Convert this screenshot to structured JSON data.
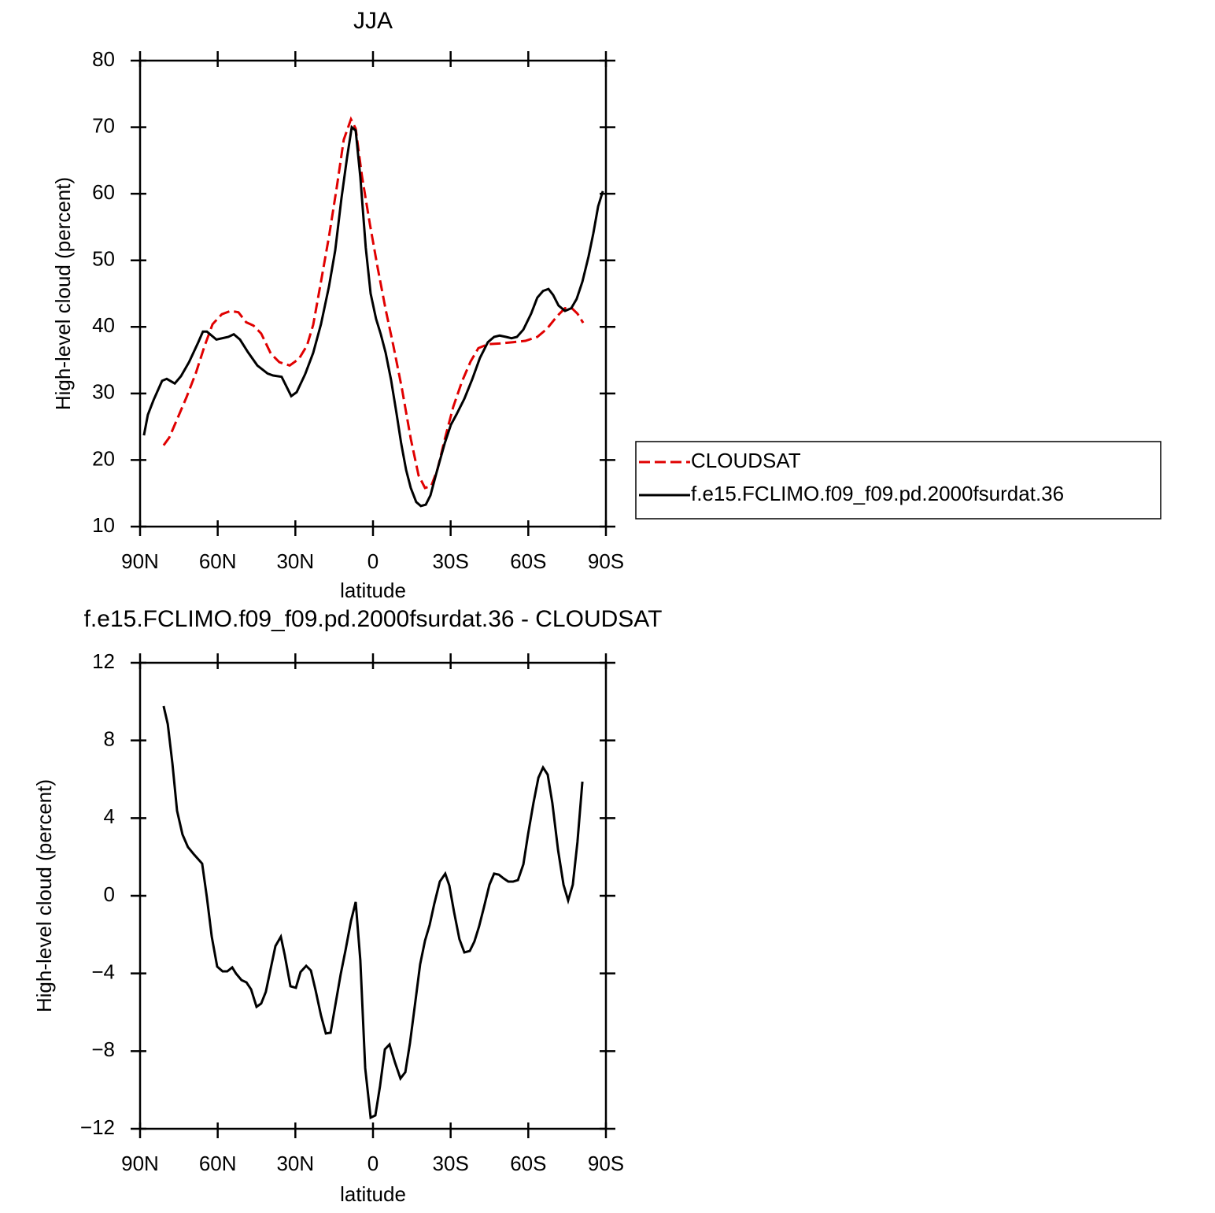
{
  "chart_data": [
    {
      "type": "line",
      "title": "JJA",
      "xlabel": "latitude",
      "ylabel": "High-level cloud (percent)",
      "xlim": [
        90,
        -90
      ],
      "xticks": [
        {
          "value": 90,
          "label": "90N"
        },
        {
          "value": 60,
          "label": "60N"
        },
        {
          "value": 30,
          "label": "30N"
        },
        0,
        {
          "value": -30,
          "label": "30S"
        },
        {
          "value": -60,
          "label": "60S"
        },
        {
          "value": -90,
          "label": "90S"
        }
      ],
      "ylim": [
        10,
        80
      ],
      "yticks": [
        10,
        20,
        30,
        40,
        50,
        60,
        70,
        80
      ],
      "legend": "right",
      "series": [
        {
          "name": "CLOUDSAT",
          "color": "#e00000",
          "dash": true,
          "x": [
            80.9,
            78.7,
            75.7,
            72.1,
            68.4,
            65.1,
            62.0,
            58.4,
            55.0,
            52.0,
            49.0,
            46.2,
            43.2,
            39.5,
            36.2,
            32.2,
            28.6,
            25.5,
            23.1,
            20.1,
            17.0,
            14.0,
            11.3,
            8.5,
            6.7,
            4.3,
            1.2,
            -1.8,
            -4.9,
            -7.9,
            -11.2,
            -14.6,
            -17.6,
            -20.1,
            -22.5,
            -24.9,
            -27.9,
            -31.0,
            -34.4,
            -37.7,
            -40.7,
            -44.4,
            -48.9,
            -54.1,
            -58.9,
            -63.5,
            -67.2,
            -71.1,
            -74.2,
            -76.6,
            -79.0,
            -81.2
          ],
          "values": [
            22.2,
            23.4,
            26.1,
            29.4,
            33.1,
            37.1,
            40.4,
            41.9,
            42.4,
            42.2,
            40.7,
            40.2,
            39.0,
            36.0,
            34.7,
            34.2,
            35.2,
            37.2,
            40.3,
            46.8,
            53.6,
            61.0,
            68.1,
            71.2,
            69.8,
            62.7,
            55.4,
            48.9,
            42.6,
            37.1,
            30.7,
            23.2,
            17.7,
            15.8,
            16.1,
            18.6,
            23.4,
            28.0,
            31.8,
            34.8,
            36.8,
            37.4,
            37.5,
            37.7,
            37.9,
            38.5,
            39.7,
            41.6,
            42.8,
            42.9,
            42.0,
            40.6
          ]
        },
        {
          "name": "f.e15.FCLIMO.f09_f09.pd.2000fsurdat.36",
          "color": "#000000",
          "dash": false,
          "x": [
            88.5,
            87.0,
            84.8,
            81.5,
            79.7,
            76.6,
            74.2,
            71.1,
            67.5,
            65.7,
            64.2,
            60.5,
            55.9,
            53.8,
            51.4,
            48.3,
            44.7,
            40.7,
            38.6,
            35.3,
            31.6,
            29.5,
            26.2,
            23.1,
            20.1,
            17.0,
            14.6,
            12.2,
            10.0,
            8.2,
            6.7,
            4.9,
            2.8,
            0.9,
            -1.2,
            -3.0,
            -4.9,
            -7.0,
            -9.1,
            -10.9,
            -12.8,
            -14.6,
            -16.7,
            -18.5,
            -20.4,
            -22.2,
            -24.6,
            -27.7,
            -30.1,
            -32.2,
            -35.3,
            -38.3,
            -41.3,
            -44.4,
            -46.8,
            -48.9,
            -51.4,
            -53.5,
            -55.6,
            -58.1,
            -61.1,
            -63.5,
            -65.7,
            -67.8,
            -69.6,
            -71.7,
            -74.2,
            -76.6,
            -78.7,
            -80.9,
            -83.3,
            -85.1,
            -87.0,
            -88.8
          ],
          "values": [
            23.7,
            26.8,
            29.0,
            31.9,
            32.2,
            31.5,
            32.6,
            34.7,
            37.7,
            39.3,
            39.3,
            38.1,
            38.5,
            38.9,
            38.1,
            36.2,
            34.2,
            33.0,
            32.7,
            32.5,
            29.6,
            30.2,
            32.9,
            36.1,
            40.4,
            46.1,
            51.5,
            59.3,
            65.5,
            70.0,
            69.5,
            62.5,
            51.9,
            45.0,
            41.2,
            38.9,
            36.1,
            32.0,
            27.0,
            22.5,
            18.5,
            15.8,
            13.7,
            13.1,
            13.3,
            14.7,
            18.2,
            22.5,
            25.3,
            26.8,
            29.2,
            32.1,
            35.3,
            37.7,
            38.5,
            38.7,
            38.5,
            38.3,
            38.5,
            39.6,
            42.0,
            44.4,
            45.4,
            45.7,
            44.8,
            43.2,
            42.4,
            42.8,
            44.2,
            46.8,
            50.6,
            54.0,
            58.1,
            60.4
          ]
        }
      ]
    },
    {
      "type": "line",
      "title": "f.e15.FCLIMO.f09_f09.pd.2000fsurdat.36 - CLOUDSAT",
      "xlabel": "latitude",
      "ylabel": "High-level cloud (percent)",
      "xlim": [
        90,
        -90
      ],
      "xticks": [
        {
          "value": 90,
          "label": "90N"
        },
        {
          "value": 60,
          "label": "60N"
        },
        {
          "value": 30,
          "label": "30N"
        },
        0,
        {
          "value": -30,
          "label": "30S"
        },
        {
          "value": -60,
          "label": "60S"
        },
        {
          "value": -90,
          "label": "90S"
        }
      ],
      "ylim": [
        -12,
        12
      ],
      "yticks": [
        {
          "value": -12,
          "label": "−12"
        },
        {
          "value": -8,
          "label": "−8"
        },
        {
          "value": -4,
          "label": "−4"
        },
        0,
        4,
        8,
        12
      ],
      "series": [
        {
          "color": "#000000",
          "dash": false,
          "x": [
            80.9,
            79.3,
            77.5,
            75.7,
            73.6,
            71.5,
            69.3,
            66.0,
            64.2,
            62.3,
            60.2,
            58.1,
            56.3,
            54.4,
            52.9,
            50.8,
            48.9,
            47.1,
            45.0,
            43.2,
            41.4,
            39.5,
            37.7,
            35.6,
            34.1,
            31.9,
            29.8,
            28.0,
            25.8,
            24.0,
            22.2,
            20.1,
            18.2,
            16.4,
            14.3,
            12.5,
            10.6,
            8.5,
            6.7,
            4.9,
            3.0,
            0.9,
            -0.9,
            -2.7,
            -4.6,
            -6.4,
            -8.5,
            -10.6,
            -12.5,
            -14.3,
            -16.4,
            -18.2,
            -20.1,
            -21.9,
            -23.7,
            -25.8,
            -27.9,
            -29.5,
            -31.3,
            -33.4,
            -35.3,
            -37.4,
            -39.2,
            -41.0,
            -42.9,
            -45.0,
            -46.8,
            -48.6,
            -50.5,
            -52.3,
            -54.1,
            -56.0,
            -58.1,
            -59.9,
            -62.0,
            -63.9,
            -65.7,
            -67.5,
            -69.3,
            -71.5,
            -73.6,
            -75.4,
            -77.2,
            -79.0,
            -80.9
          ],
          "values": [
            9.77,
            8.84,
            6.81,
            4.38,
            3.16,
            2.51,
            2.15,
            1.66,
            -0.08,
            -2.11,
            -3.65,
            -3.89,
            -3.89,
            -3.69,
            -4.01,
            -4.34,
            -4.46,
            -4.82,
            -5.72,
            -5.55,
            -4.95,
            -3.73,
            -2.59,
            -2.11,
            -3.04,
            -4.66,
            -4.74,
            -3.93,
            -3.61,
            -3.85,
            -4.86,
            -6.16,
            -7.09,
            -7.05,
            -5.43,
            -4.05,
            -2.8,
            -1.3,
            -0.32,
            -3.32,
            -8.88,
            -11.43,
            -11.31,
            -9.81,
            -7.91,
            -7.66,
            -8.59,
            -9.41,
            -9.08,
            -7.58,
            -5.43,
            -3.53,
            -2.31,
            -1.5,
            -0.41,
            0.73,
            1.14,
            0.53,
            -0.81,
            -2.23,
            -2.92,
            -2.84,
            -2.35,
            -1.58,
            -0.57,
            0.57,
            1.14,
            1.09,
            0.89,
            0.73,
            0.73,
            0.81,
            1.62,
            3.16,
            4.78,
            6.08,
            6.61,
            6.24,
            4.78,
            2.35,
            0.57,
            -0.24,
            0.57,
            2.76,
            5.88
          ]
        }
      ]
    }
  ]
}
